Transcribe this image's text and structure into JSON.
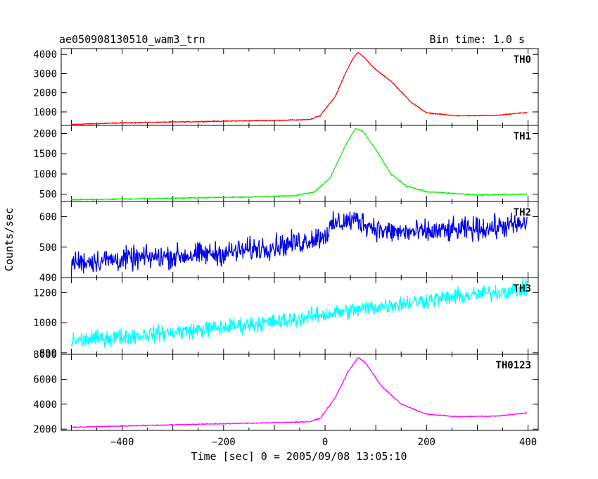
{
  "header": {
    "title": "ae050908130510_wam3_trn",
    "bin_time": "Bin time: 1.0 s"
  },
  "axes": {
    "xlabel": "Time [sec] 0 = 2005/09/08 13:05:10",
    "ylabel": "Counts/sec"
  },
  "chart_data": {
    "type": "line",
    "title": "ae050908130510_wam3_trn",
    "xlabel": "Time [sec] 0 = 2005/09/08 13:05:10",
    "ylabel": "Counts/sec",
    "xlim": [
      -520,
      420
    ],
    "x_ticks": [
      -400,
      -200,
      0,
      200,
      400
    ],
    "x_tick_labels": [
      "−400",
      "−200",
      "0",
      "200",
      "400"
    ],
    "x_range": [
      -500,
      398
    ],
    "grid": false,
    "panels": [
      {
        "name": "TH0",
        "color": "#ff0000",
        "ylim": [
          300,
          4300
        ],
        "yticks": [
          1000,
          2000,
          3000,
          4000
        ],
        "ytick_labels": [
          "1000",
          "2000",
          "3000",
          "4000"
        ],
        "noise": 25,
        "curve": [
          [
            -500,
            350
          ],
          [
            -400,
            430
          ],
          [
            -200,
            520
          ],
          [
            -100,
            560
          ],
          [
            -30,
            600
          ],
          [
            -10,
            800
          ],
          [
            20,
            1800
          ],
          [
            40,
            3000
          ],
          [
            55,
            3800
          ],
          [
            65,
            4100
          ],
          [
            75,
            3900
          ],
          [
            100,
            3200
          ],
          [
            130,
            2600
          ],
          [
            170,
            1500
          ],
          [
            200,
            950
          ],
          [
            260,
            800
          ],
          [
            340,
            820
          ],
          [
            398,
            980
          ]
        ]
      },
      {
        "name": "TH1",
        "color": "#00ee00",
        "ylim": [
          320,
          2200
        ],
        "yticks": [
          500,
          1000,
          1500,
          2000
        ],
        "ytick_labels": [
          "500",
          "1000",
          "1500",
          "2000"
        ],
        "noise": 15,
        "curve": [
          [
            -500,
            360
          ],
          [
            -300,
            400
          ],
          [
            -150,
            430
          ],
          [
            -60,
            460
          ],
          [
            -20,
            560
          ],
          [
            10,
            900
          ],
          [
            40,
            1700
          ],
          [
            60,
            2120
          ],
          [
            75,
            2050
          ],
          [
            100,
            1600
          ],
          [
            130,
            1000
          ],
          [
            160,
            700
          ],
          [
            200,
            560
          ],
          [
            300,
            480
          ],
          [
            398,
            500
          ]
        ]
      },
      {
        "name": "TH2",
        "color": "#0000ee",
        "ylim": [
          400,
          650
        ],
        "yticks": [
          400,
          500,
          600
        ],
        "ytick_labels": [
          "400",
          "500",
          "600"
        ],
        "noise": 38,
        "curve": [
          [
            -500,
            450
          ],
          [
            -200,
            480
          ],
          [
            -50,
            515
          ],
          [
            0,
            540
          ],
          [
            20,
            578
          ],
          [
            60,
            590
          ],
          [
            120,
            550
          ],
          [
            200,
            548
          ],
          [
            300,
            560
          ],
          [
            398,
            575
          ]
        ]
      },
      {
        "name": "TH3",
        "color": "#00ffff",
        "ylim": [
          790,
          1300
        ],
        "yticks": [
          800,
          1000,
          1200
        ],
        "ytick_labels": [
          "800",
          "1000",
          "1200"
        ],
        "noise": 55,
        "curve": [
          [
            -500,
            880
          ],
          [
            -300,
            935
          ],
          [
            -100,
            1005
          ],
          [
            0,
            1055
          ],
          [
            100,
            1105
          ],
          [
            200,
            1150
          ],
          [
            300,
            1185
          ],
          [
            398,
            1230
          ]
        ]
      },
      {
        "name": "TH0123",
        "color": "#ff00ff",
        "ylim": [
          1900,
          8000
        ],
        "yticks": [
          2000,
          4000,
          6000,
          8000
        ],
        "ytick_labels": [
          "2000",
          "4000",
          "6000",
          "8000"
        ],
        "noise": 40,
        "curve": [
          [
            -500,
            2150
          ],
          [
            -300,
            2350
          ],
          [
            -100,
            2520
          ],
          [
            -30,
            2600
          ],
          [
            -10,
            2850
          ],
          [
            20,
            4500
          ],
          [
            45,
            6600
          ],
          [
            65,
            7750
          ],
          [
            80,
            7300
          ],
          [
            110,
            5500
          ],
          [
            150,
            4000
          ],
          [
            200,
            3200
          ],
          [
            260,
            3000
          ],
          [
            340,
            3050
          ],
          [
            398,
            3300
          ]
        ]
      }
    ]
  }
}
